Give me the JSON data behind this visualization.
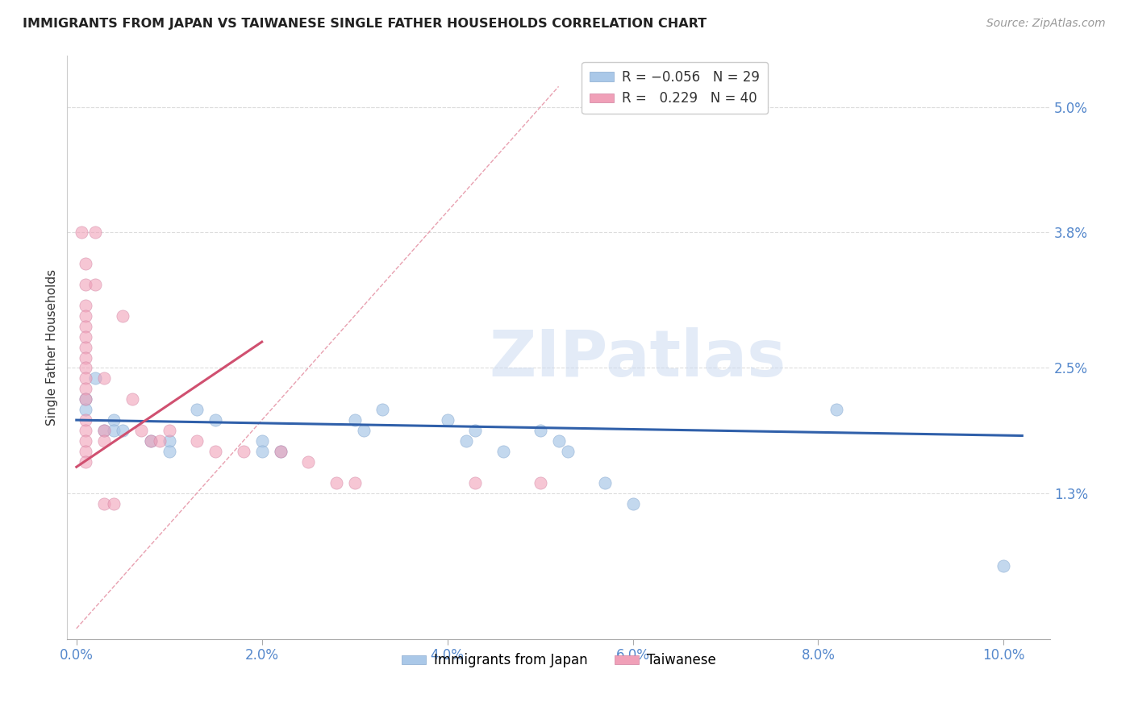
{
  "title": "IMMIGRANTS FROM JAPAN VS TAIWANESE SINGLE FATHER HOUSEHOLDS CORRELATION CHART",
  "source": "Source: ZipAtlas.com",
  "ylabel": "Single Father Households",
  "right_yticklabels": [
    "",
    "1.3%",
    "2.5%",
    "3.8%",
    "5.0%"
  ],
  "right_ytick_vals": [
    0.0,
    0.013,
    0.025,
    0.038,
    0.05
  ],
  "blue_scatter": [
    [
      0.001,
      0.022
    ],
    [
      0.001,
      0.021
    ],
    [
      0.002,
      0.024
    ],
    [
      0.003,
      0.019
    ],
    [
      0.004,
      0.02
    ],
    [
      0.004,
      0.019
    ],
    [
      0.005,
      0.019
    ],
    [
      0.008,
      0.018
    ],
    [
      0.01,
      0.018
    ],
    [
      0.01,
      0.017
    ],
    [
      0.013,
      0.021
    ],
    [
      0.015,
      0.02
    ],
    [
      0.02,
      0.018
    ],
    [
      0.02,
      0.017
    ],
    [
      0.022,
      0.017
    ],
    [
      0.03,
      0.02
    ],
    [
      0.031,
      0.019
    ],
    [
      0.033,
      0.021
    ],
    [
      0.04,
      0.02
    ],
    [
      0.042,
      0.018
    ],
    [
      0.043,
      0.019
    ],
    [
      0.046,
      0.017
    ],
    [
      0.05,
      0.019
    ],
    [
      0.052,
      0.018
    ],
    [
      0.053,
      0.017
    ],
    [
      0.057,
      0.014
    ],
    [
      0.06,
      0.012
    ],
    [
      0.082,
      0.021
    ],
    [
      0.1,
      0.006
    ]
  ],
  "pink_scatter": [
    [
      0.0005,
      0.038
    ],
    [
      0.001,
      0.035
    ],
    [
      0.001,
      0.033
    ],
    [
      0.001,
      0.031
    ],
    [
      0.001,
      0.03
    ],
    [
      0.001,
      0.029
    ],
    [
      0.001,
      0.028
    ],
    [
      0.001,
      0.027
    ],
    [
      0.001,
      0.026
    ],
    [
      0.001,
      0.025
    ],
    [
      0.001,
      0.024
    ],
    [
      0.001,
      0.023
    ],
    [
      0.001,
      0.022
    ],
    [
      0.001,
      0.02
    ],
    [
      0.001,
      0.019
    ],
    [
      0.001,
      0.018
    ],
    [
      0.001,
      0.017
    ],
    [
      0.001,
      0.016
    ],
    [
      0.002,
      0.038
    ],
    [
      0.002,
      0.033
    ],
    [
      0.003,
      0.024
    ],
    [
      0.003,
      0.019
    ],
    [
      0.003,
      0.018
    ],
    [
      0.003,
      0.012
    ],
    [
      0.004,
      0.012
    ],
    [
      0.005,
      0.03
    ],
    [
      0.006,
      0.022
    ],
    [
      0.007,
      0.019
    ],
    [
      0.008,
      0.018
    ],
    [
      0.009,
      0.018
    ],
    [
      0.01,
      0.019
    ],
    [
      0.013,
      0.018
    ],
    [
      0.015,
      0.017
    ],
    [
      0.018,
      0.017
    ],
    [
      0.022,
      0.017
    ],
    [
      0.025,
      0.016
    ],
    [
      0.028,
      0.014
    ],
    [
      0.03,
      0.014
    ],
    [
      0.043,
      0.014
    ],
    [
      0.05,
      0.014
    ]
  ],
  "blue_line_x": [
    0.0,
    0.102
  ],
  "blue_line_y": [
    0.02,
    0.0185
  ],
  "pink_line_x": [
    0.0,
    0.02
  ],
  "pink_line_y": [
    0.0155,
    0.0275
  ],
  "diag_line_x": [
    0.0,
    0.052
  ],
  "diag_line_y": [
    0.0,
    0.052
  ],
  "scatter_size": 120,
  "blue_color": "#aac8e8",
  "pink_color": "#f0a0b8",
  "blue_line_color": "#3060aa",
  "pink_line_color": "#d05070",
  "diag_line_color": "#e8a0b0",
  "background_color": "#ffffff",
  "grid_color": "#dddddd",
  "watermark": "ZIPatlas",
  "xlim": [
    -0.001,
    0.105
  ],
  "ylim": [
    -0.001,
    0.055
  ],
  "xticks": [
    0.0,
    0.02,
    0.04,
    0.06,
    0.08,
    0.1
  ],
  "xticklabels": [
    "0.0%",
    "2.0%",
    "4.0%",
    "6.0%",
    "8.0%",
    "10.0%"
  ]
}
